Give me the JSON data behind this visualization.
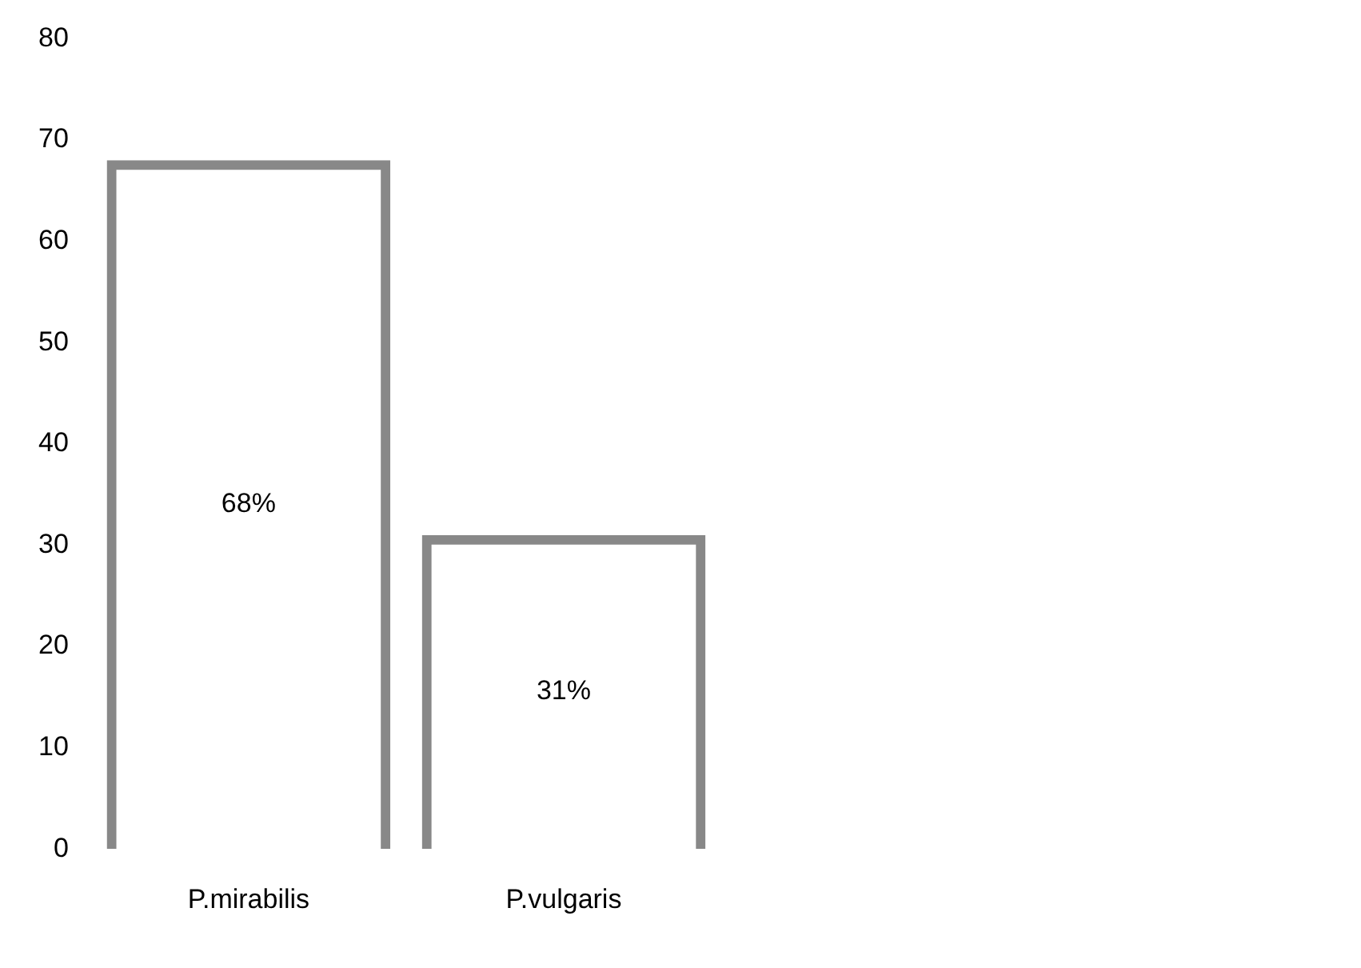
{
  "chart_data": {
    "type": "bar",
    "categories": [
      "P.mirabilis",
      "P.vulgaris"
    ],
    "values": [
      68,
      31
    ],
    "color": "#888888",
    "value_labels": [
      "68%",
      "31%"
    ],
    "ylim": [
      0,
      80
    ],
    "yticks": [
      0,
      10,
      20,
      30,
      40,
      50,
      60,
      70,
      80
    ],
    "grid": false,
    "legend": false
  }
}
